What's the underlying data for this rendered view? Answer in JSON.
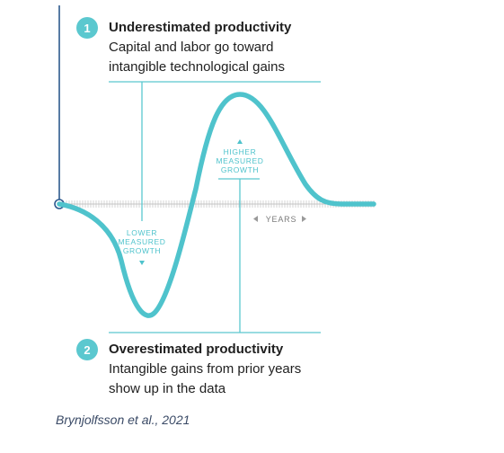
{
  "colors": {
    "accent": "#5bc8cf",
    "line": "#4fc3cc",
    "text": "#1f1f1f",
    "tick": "#c9c9c9",
    "caption": "#3a4a66"
  },
  "top_note": {
    "number": "1",
    "title": "Underestimated productivity",
    "line1": "Capital and labor go toward",
    "line2": "intangible technological gains"
  },
  "bottom_note": {
    "number": "2",
    "title": "Overestimated productivity",
    "line1": "Intangible gains from prior years",
    "line2": "show up in the data"
  },
  "labels": {
    "higher": [
      "HIGHER",
      "MEASURED",
      "GROWTH"
    ],
    "lower": [
      "LOWER",
      "MEASURED",
      "GROWTH"
    ],
    "years": "YEARS"
  },
  "caption": "Brynjolfsson et al., 2021"
}
